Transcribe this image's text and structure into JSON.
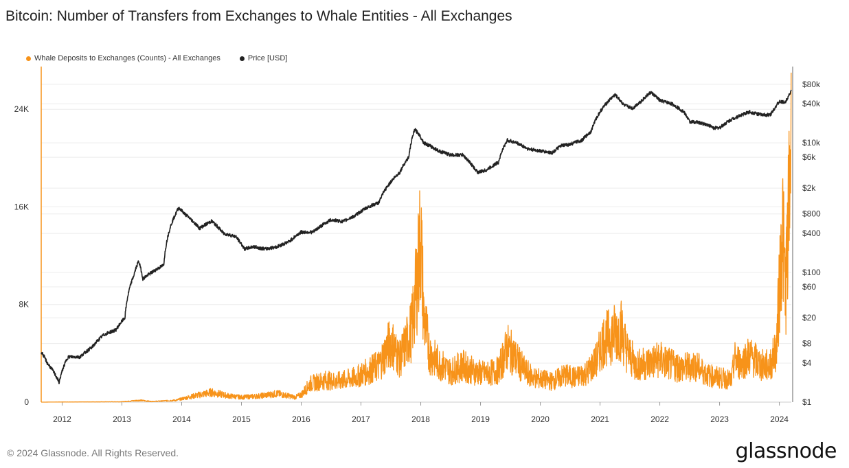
{
  "header": {
    "title": "Bitcoin: Number of Transfers from Exchanges to Whale Entities - All Exchanges"
  },
  "footer": {
    "copyright": "© 2024 Glassnode. All Rights Reserved.",
    "brand": "glassnode"
  },
  "colors": {
    "deposits": "#f7931a",
    "price": "#222222",
    "grid": "#ececec"
  },
  "chart_data": {
    "type": "line",
    "title": "Bitcoin: Number of Transfers from Exchanges to Whale Entities - All Exchanges",
    "legend": [
      "Whale Deposits to Exchanges (Counts) - All Exchanges",
      "Price [USD]"
    ],
    "legend_position": "top-left",
    "grid": true,
    "x_ticks": [
      "2012",
      "2013",
      "2014",
      "2015",
      "2016",
      "2017",
      "2018",
      "2019",
      "2020",
      "2021",
      "2022",
      "2023",
      "2024"
    ],
    "x_range": [
      2011.65,
      2024.2
    ],
    "y_left": {
      "label": "",
      "ticks": [
        "0",
        "8K",
        "16K",
        "24K"
      ],
      "tick_values": [
        0,
        8000,
        16000,
        24000
      ],
      "range": [
        0,
        27500
      ],
      "scale": "linear"
    },
    "y_right": {
      "label": "",
      "ticks": [
        "$1",
        "$4",
        "$8",
        "$20",
        "$60",
        "$100",
        "$400",
        "$800",
        "$2k",
        "$6k",
        "$10k",
        "$40k",
        "$80k"
      ],
      "tick_values": [
        1,
        4,
        8,
        20,
        60,
        100,
        400,
        800,
        2000,
        6000,
        10000,
        40000,
        80000
      ],
      "range": [
        1,
        150000
      ],
      "scale": "log"
    },
    "series": [
      {
        "name": "Whale Deposits to Exchanges (Counts) - All Exchanges",
        "axis": "left",
        "x": [
          2011.65,
          2012.0,
          2012.5,
          2013.0,
          2013.3,
          2013.5,
          2013.9,
          2014.2,
          2014.5,
          2014.8,
          2015.0,
          2015.3,
          2015.6,
          2015.9,
          2016.0,
          2016.15,
          2016.4,
          2016.6,
          2016.9,
          2017.1,
          2017.3,
          2017.5,
          2017.65,
          2017.85,
          2017.95,
          2018.0,
          2018.05,
          2018.15,
          2018.3,
          2018.5,
          2018.7,
          2018.9,
          2019.1,
          2019.3,
          2019.45,
          2019.6,
          2019.75,
          2019.9,
          2020.1,
          2020.2,
          2020.4,
          2020.6,
          2020.8,
          2020.95,
          2021.05,
          2021.2,
          2021.35,
          2021.45,
          2021.6,
          2021.8,
          2022.0,
          2022.2,
          2022.4,
          2022.6,
          2022.8,
          2023.0,
          2023.2,
          2023.25,
          2023.35,
          2023.5,
          2023.7,
          2023.85,
          2023.95,
          2024.0,
          2024.05,
          2024.1,
          2024.15,
          2024.2
        ],
        "values": [
          0,
          10,
          20,
          30,
          150,
          50,
          150,
          500,
          800,
          500,
          400,
          500,
          700,
          400,
          600,
          1500,
          1800,
          1700,
          2000,
          2500,
          3000,
          5000,
          3500,
          6000,
          10500,
          14000,
          7000,
          4000,
          3200,
          2500,
          3000,
          2500,
          2300,
          2600,
          4500,
          3500,
          2500,
          2000,
          1800,
          1700,
          2200,
          2000,
          2500,
          3500,
          5000,
          5500,
          6000,
          4200,
          3000,
          3200,
          3500,
          3000,
          2800,
          3000,
          2200,
          2000,
          1800,
          3500,
          3200,
          3800,
          3000,
          3000,
          4500,
          9000,
          15000,
          9000,
          14000,
          24000
        ]
      },
      {
        "name": "Price [USD]",
        "axis": "right",
        "x": [
          2011.65,
          2011.75,
          2011.85,
          2011.95,
          2012.1,
          2012.3,
          2012.5,
          2012.7,
          2012.9,
          2013.05,
          2013.2,
          2013.28,
          2013.35,
          2013.5,
          2013.7,
          2013.9,
          2013.95,
          2014.05,
          2014.2,
          2014.3,
          2014.5,
          2014.7,
          2014.9,
          2015.05,
          2015.2,
          2015.4,
          2015.6,
          2015.8,
          2016.0,
          2016.2,
          2016.5,
          2016.7,
          2016.9,
          2017.1,
          2017.3,
          2017.5,
          2017.65,
          2017.8,
          2017.9,
          2017.96,
          2018.05,
          2018.15,
          2018.3,
          2018.5,
          2018.7,
          2018.9,
          2018.96,
          2019.1,
          2019.3,
          2019.45,
          2019.6,
          2019.8,
          2020.0,
          2020.2,
          2020.35,
          2020.5,
          2020.7,
          2020.85,
          2020.95,
          2021.05,
          2021.25,
          2021.4,
          2021.55,
          2021.7,
          2021.85,
          2022.0,
          2022.2,
          2022.4,
          2022.5,
          2022.6,
          2022.8,
          2022.9,
          2023.0,
          2023.2,
          2023.5,
          2023.7,
          2023.85,
          2024.0,
          2024.1,
          2024.2
        ],
        "values": [
          6,
          4,
          3,
          2,
          5,
          5,
          7,
          11,
          13,
          20,
          90,
          150,
          80,
          100,
          130,
          800,
          1000,
          800,
          600,
          480,
          620,
          400,
          360,
          230,
          250,
          230,
          250,
          300,
          420,
          420,
          650,
          610,
          750,
          1000,
          1200,
          2500,
          3500,
          6000,
          16000,
          14000,
          10000,
          9000,
          7500,
          6500,
          6500,
          4000,
          3500,
          3800,
          5000,
          11000,
          10000,
          8000,
          7500,
          7000,
          9000,
          9500,
          11000,
          15000,
          25000,
          35000,
          55000,
          38000,
          34000,
          45000,
          60000,
          45000,
          40000,
          30000,
          21000,
          21000,
          19000,
          17000,
          17000,
          23000,
          30000,
          27000,
          27000,
          43000,
          42000,
          63000
        ]
      }
    ]
  }
}
